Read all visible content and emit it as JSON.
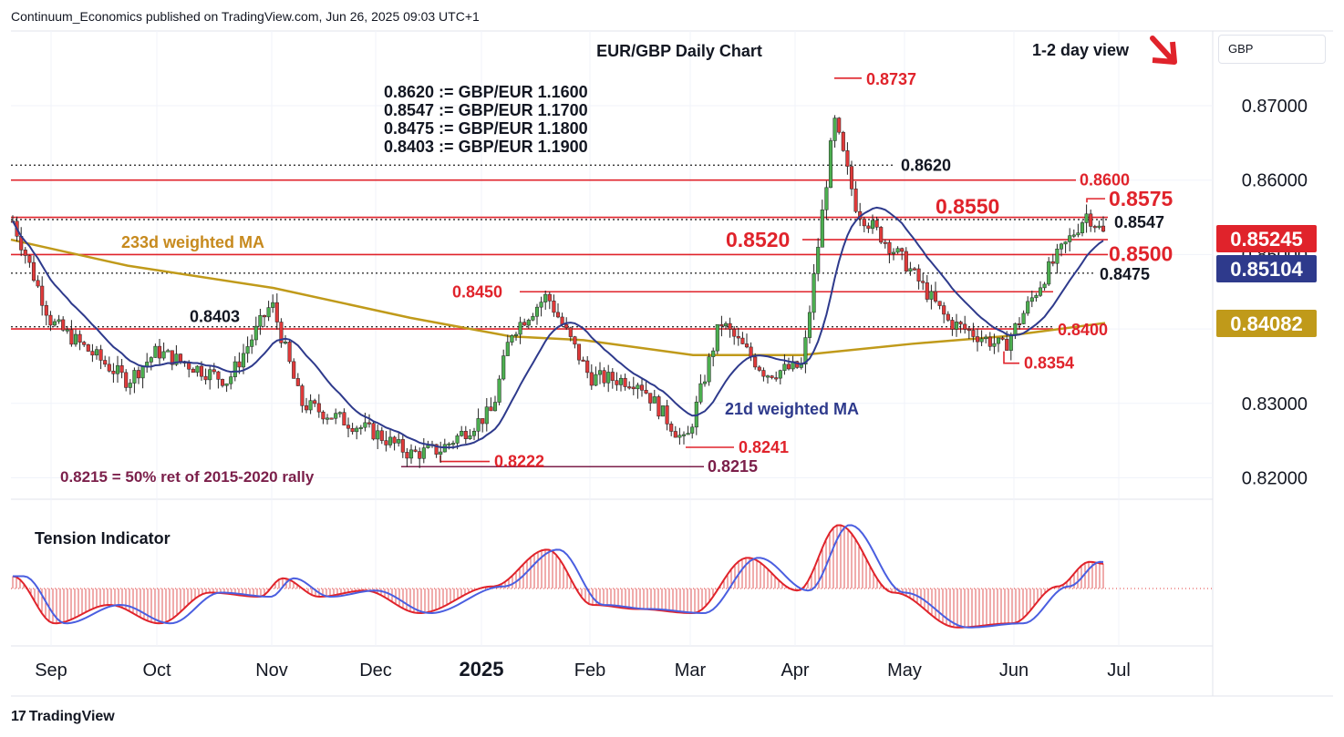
{
  "publisher": "Continuum_Economics published on TradingView.com, Jun 26, 2025 09:03 UTC+1",
  "brand": "TradingView",
  "currency": "GBP",
  "colors": {
    "up": "#4caf50",
    "down": "#e03a3a",
    "ma21": "#2e3a8c",
    "ma233": "#c09a1a",
    "level": "#e0232b",
    "fib": "#7b1f4a",
    "grid": "#f0f3fa"
  },
  "chart_data": [
    {
      "type": "candlestick",
      "title": "EUR/GBP Daily Chart",
      "view": "1-2 day view",
      "view_direction": "down",
      "y_ticks": [
        "0.87000",
        "0.86000",
        "0.85000",
        "0.84000",
        "0.83000",
        "0.82000"
      ],
      "ylim": [
        0.8195,
        0.8795
      ],
      "x_ticks": [
        "Sep",
        "Oct",
        "Nov",
        "Dec",
        "2025",
        "Feb",
        "Mar",
        "Apr",
        "May",
        "Jun",
        "Jul"
      ],
      "price_labels": [
        {
          "value": "0.85245",
          "kind": "last"
        },
        {
          "value": "0.85104",
          "kind": "ma21"
        },
        {
          "value": "0.84082",
          "kind": "ma233"
        }
      ],
      "conversions": [
        "0.8620 := GBP/EUR 1.1600",
        "0.8547 := GBP/EUR 1.1700",
        "0.8475 := GBP/EUR 1.1800",
        "0.8403 := GBP/EUR 1.1900"
      ],
      "levels": [
        {
          "label": "0.8737",
          "value": 0.8737,
          "style": "marker"
        },
        {
          "label": "0.8620",
          "value": 0.862,
          "style": "dotted"
        },
        {
          "label": "0.8600",
          "value": 0.86,
          "style": "solid"
        },
        {
          "label": "0.8575",
          "value": 0.8575,
          "style": "marker"
        },
        {
          "label": "0.8550",
          "value": 0.855,
          "style": "solid"
        },
        {
          "label": "0.8547",
          "value": 0.8547,
          "style": "dotted"
        },
        {
          "label": "0.8520",
          "value": 0.852,
          "style": "solid"
        },
        {
          "label": "0.8500",
          "value": 0.85,
          "style": "solid"
        },
        {
          "label": "0.8475",
          "value": 0.8475,
          "style": "dotted"
        },
        {
          "label": "0.8450",
          "value": 0.845,
          "style": "solid"
        },
        {
          "label": "0.8403",
          "value": 0.8403,
          "style": "dotted"
        },
        {
          "label": "0.8400",
          "value": 0.84,
          "style": "solid"
        },
        {
          "label": "0.8354",
          "value": 0.8354,
          "style": "marker"
        },
        {
          "label": "0.8241",
          "value": 0.8241,
          "style": "marker"
        },
        {
          "label": "0.8222",
          "value": 0.8222,
          "style": "marker"
        },
        {
          "label": "0.8215",
          "value": 0.8215,
          "style": "fib"
        }
      ],
      "annotations": [
        "233d weighted MA",
        "21d weighted MA",
        "0.8215 = 50% ret of 2015-2020 rally"
      ],
      "close_series": [
        {
          "month": "Sep",
          "close": 0.841
        },
        {
          "month": "Oct",
          "close": 0.837
        },
        {
          "month": "Nov",
          "close": 0.833
        },
        {
          "month": "Dec",
          "close": 0.826
        },
        {
          "month": "Jan",
          "close": 0.844
        },
        {
          "month": "Feb",
          "close": 0.833
        },
        {
          "month": "Mar",
          "close": 0.837
        },
        {
          "month": "Apr",
          "close": 0.856
        },
        {
          "month": "May",
          "close": 0.842
        },
        {
          "month": "Jun",
          "close": 0.8525
        }
      ]
    },
    {
      "type": "area",
      "title": "Tension Indicator",
      "ylim": [
        -1,
        1
      ],
      "note": "oscillator with signal line and histogram around zero"
    }
  ]
}
